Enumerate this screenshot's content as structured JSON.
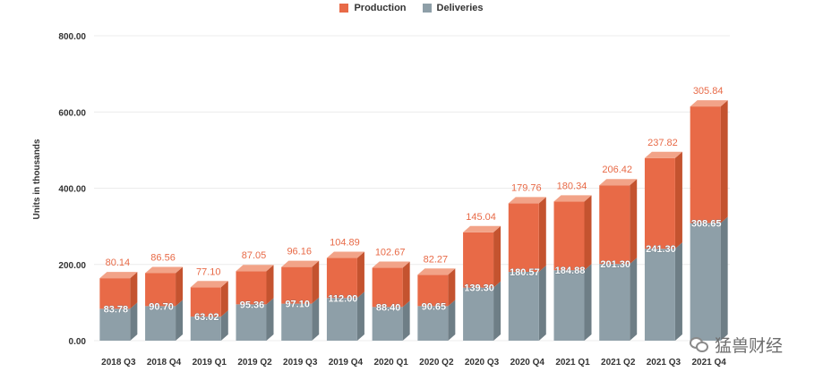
{
  "legend": {
    "production_label": "Production",
    "deliveries_label": "Deliveries"
  },
  "watermark": {
    "text": "猛兽财经",
    "icon": "wechat-icon"
  },
  "colors": {
    "production": "#e86a47",
    "production_top": "#f2a388",
    "production_side": "#c4532f",
    "deliveries": "#8e9fa8",
    "deliveries_top": "#b6c2c8",
    "deliveries_side": "#6e7e86",
    "production_label": "#e86a47",
    "deliveries_label": "#ffffff"
  },
  "chart_data": {
    "type": "bar",
    "stacked": true,
    "three_d": true,
    "ylabel": "Units in thousands",
    "ylim": [
      0,
      800
    ],
    "yticks": [
      "0.00",
      "200.00",
      "400.00",
      "600.00",
      "800.00"
    ],
    "grid": true,
    "legend_position": "top-center",
    "categories": [
      "2018 Q3",
      "2018 Q4",
      "2019 Q1",
      "2019 Q2",
      "2019 Q3",
      "2019 Q4",
      "2020 Q1",
      "2020 Q2",
      "2020 Q3",
      "2020 Q4",
      "2021 Q1",
      "2021 Q2",
      "2021 Q3",
      "2021 Q4"
    ],
    "series": [
      {
        "name": "Deliveries",
        "values": [
          83.78,
          90.7,
          63.02,
          95.36,
          97.1,
          112.0,
          88.4,
          90.65,
          139.3,
          180.57,
          184.88,
          201.3,
          241.3,
          308.65
        ],
        "labels": [
          "83.78",
          "90.70",
          "63.02",
          "95.36",
          "97.10",
          "112.00",
          "88.40",
          "90.65",
          "139.30",
          "180.57",
          "184.88",
          "201.30",
          "241.30",
          "308.65"
        ]
      },
      {
        "name": "Production",
        "values": [
          80.14,
          86.56,
          77.1,
          87.05,
          96.16,
          104.89,
          102.67,
          82.27,
          145.04,
          179.76,
          180.34,
          206.42,
          237.82,
          305.84
        ],
        "labels": [
          "80.14",
          "86.56",
          "77.10",
          "87.05",
          "96.16",
          "104.89",
          "102.67",
          "82.27",
          "145.04",
          "179.76",
          "180.34",
          "206.42",
          "237.82",
          "305.84"
        ]
      }
    ]
  }
}
